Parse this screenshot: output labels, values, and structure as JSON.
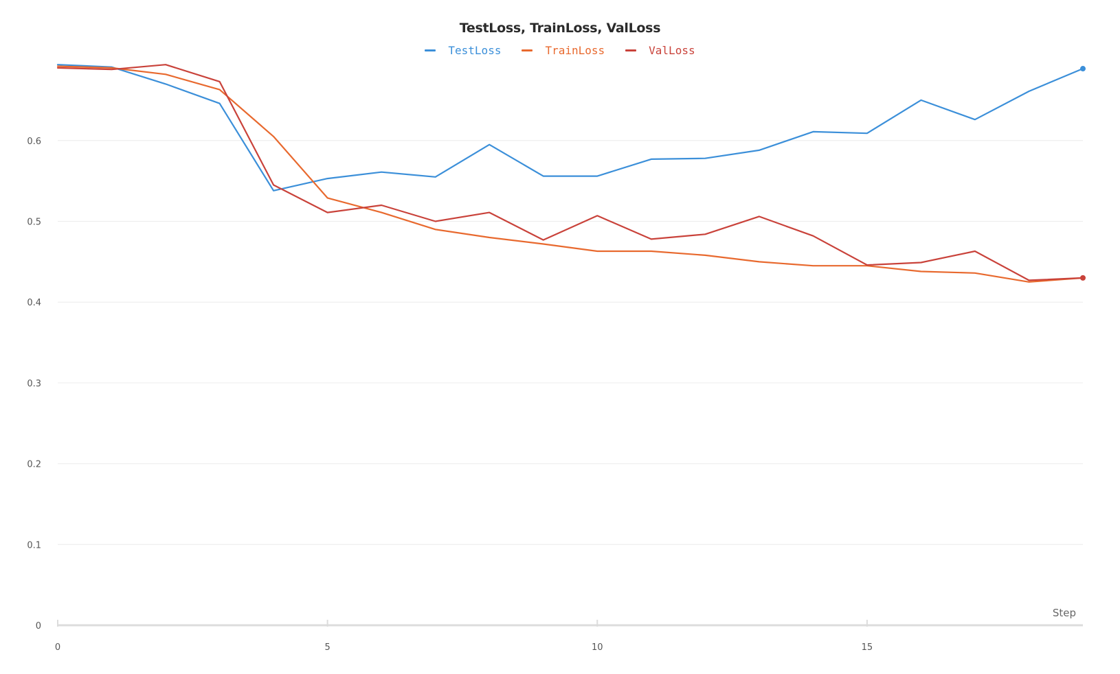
{
  "chart_data": {
    "type": "line",
    "title": "TestLoss, TrainLoss, ValLoss",
    "xlabel": "Step",
    "ylabel": "",
    "x": [
      0,
      1,
      2,
      3,
      4,
      5,
      6,
      7,
      8,
      9,
      10,
      11,
      12,
      13,
      14,
      15,
      16,
      17,
      18,
      19
    ],
    "xlim": [
      0,
      19
    ],
    "ylim": [
      0,
      0.69
    ],
    "xticks": [
      "0",
      "5",
      "10",
      "15"
    ],
    "xtick_values": [
      0,
      5,
      10,
      15
    ],
    "yticks": [
      "0",
      "0.1",
      "0.2",
      "0.3",
      "0.4",
      "0.5",
      "0.6"
    ],
    "ytick_values": [
      0,
      0.1,
      0.2,
      0.3,
      0.4,
      0.5,
      0.6
    ],
    "grid": true,
    "legend_position": "top-center",
    "series": [
      {
        "name": "TestLoss",
        "color": "#3b8fd9",
        "values": [
          0.694,
          0.691,
          0.67,
          0.646,
          0.538,
          0.553,
          0.561,
          0.555,
          0.595,
          0.556,
          0.556,
          0.577,
          0.578,
          0.588,
          0.611,
          0.609,
          0.65,
          0.626,
          0.661,
          0.689
        ],
        "end_marker": true
      },
      {
        "name": "TrainLoss",
        "color": "#e8692e",
        "values": [
          0.692,
          0.69,
          0.682,
          0.663,
          0.605,
          0.529,
          0.511,
          0.49,
          0.48,
          0.472,
          0.463,
          0.463,
          0.458,
          0.45,
          0.445,
          0.445,
          0.438,
          0.436,
          0.425,
          0.43
        ],
        "end_marker": false
      },
      {
        "name": "ValLoss",
        "color": "#c9423a",
        "values": [
          0.69,
          0.688,
          0.694,
          0.673,
          0.545,
          0.511,
          0.52,
          0.5,
          0.511,
          0.477,
          0.507,
          0.478,
          0.484,
          0.506,
          0.482,
          0.446,
          0.449,
          0.463,
          0.427,
          0.43
        ],
        "end_marker": true
      }
    ]
  },
  "colors": {
    "grid": "#ececec",
    "axis": "#dcdcdc",
    "tick_text": "#555555"
  }
}
